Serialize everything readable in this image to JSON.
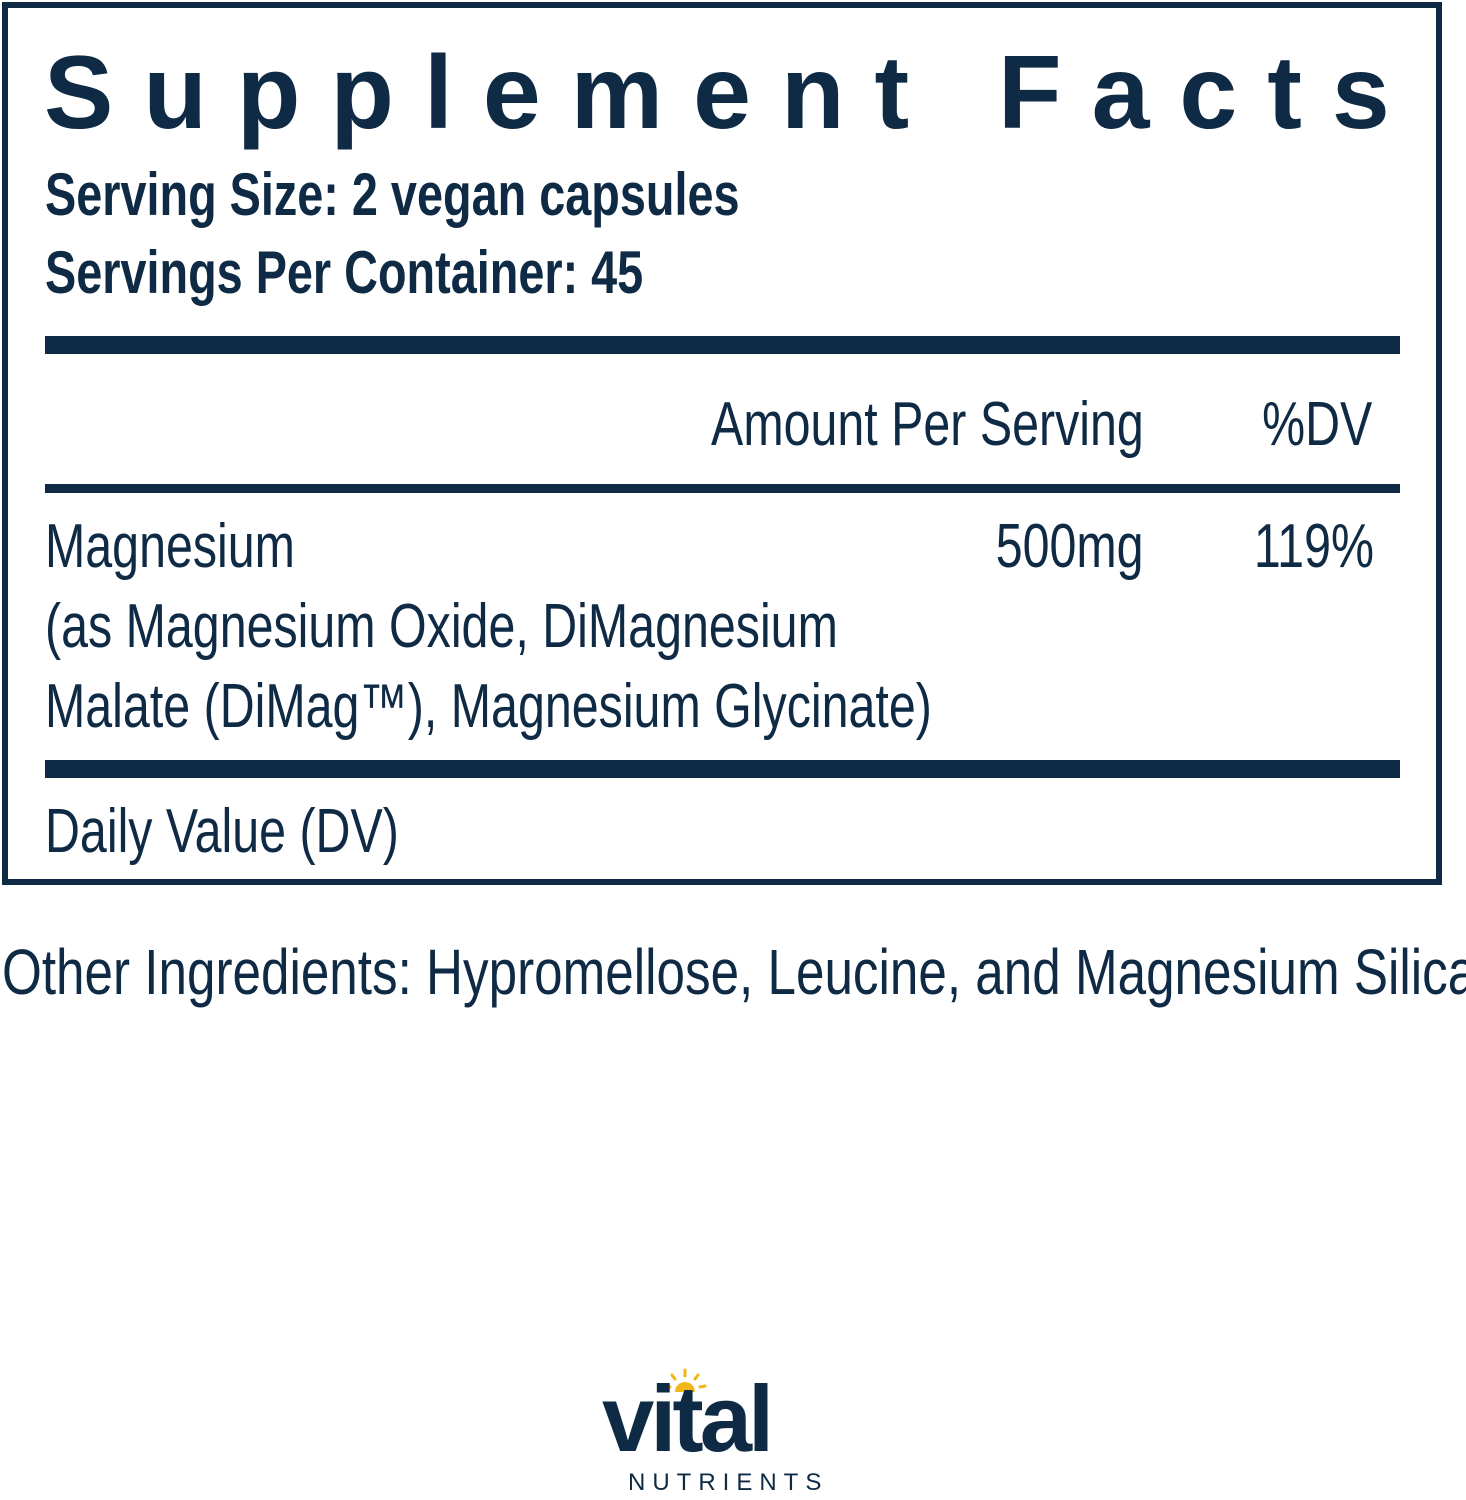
{
  "panel": {
    "title": "Supplement Facts",
    "serving_size": "Serving Size: 2 vegan capsules",
    "servings_per_container": "Servings Per Container: 45",
    "header_amount": "Amount Per Serving",
    "header_dv": "%DV",
    "nutrients": [
      {
        "name": "Magnesium",
        "source_lines": [
          "(as Magnesium Oxide, DiMagnesium",
          "Malate (DiMag™), Magnesium Glycinate)"
        ],
        "amount": "500mg",
        "dv": "119%"
      }
    ],
    "footnote": "Daily Value (DV)"
  },
  "other_ingredients": "Other Ingredients: Hypromellose, Leucine, and Magnesium Silicate.",
  "logo": {
    "brand": "vital",
    "sub": "NUTRIENTS",
    "colors": {
      "text": "#0f2a44",
      "sun": "#f2b619"
    }
  }
}
